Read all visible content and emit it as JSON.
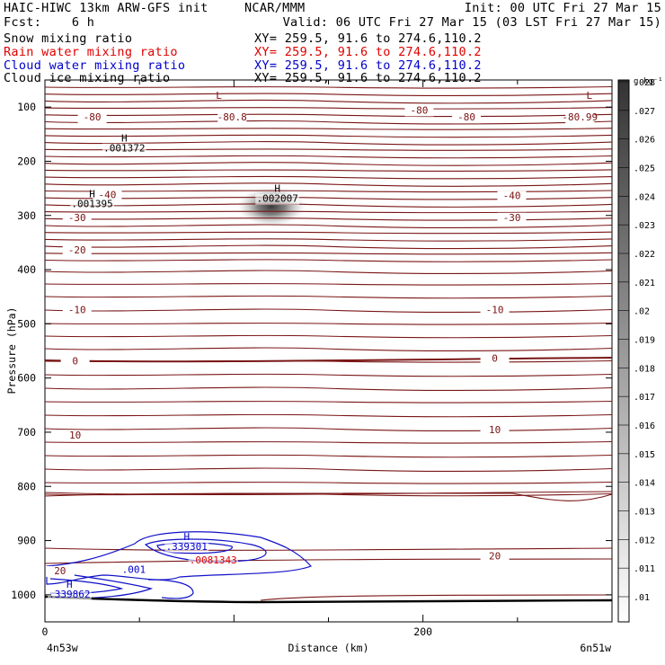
{
  "header": {
    "model": "HAIC-HIWC 13km ARW-GFS init",
    "org": "NCAR/MMM",
    "init": "Init: 00 UTC Fri 27 Mar 15",
    "fcst": "Fcst:    6 h",
    "valid": "Valid: 06 UTC Fri 27 Mar 15 (03 LST Fri 27 Mar 15)"
  },
  "fields": [
    {
      "label": "Snow mixing ratio",
      "xy": "XY= 259.5, 91.6 to 274.6,110.2",
      "color": "#000000"
    },
    {
      "label": "Rain water mixing ratio",
      "xy": "XY= 259.5, 91.6 to 274.6,110.2",
      "color": "#e00000"
    },
    {
      "label": "Cloud water mixing ratio",
      "xy": "XY= 259.5, 91.6 to 274.6,110.2",
      "color": "#0000cc"
    },
    {
      "label": "Cloud ice mixing ratio",
      "xy": "XY= 259.5, 91.6 to 274.6,110.2",
      "color": "#000000"
    }
  ],
  "chart_data": {
    "type": "heatmap",
    "xlabel": "Distance (km)",
    "ylabel": "Pressure (hPa)",
    "xlim": [
      0,
      300
    ],
    "ylim": [
      1050,
      50
    ],
    "x_ticks": [
      0,
      200
    ],
    "y_ticks": [
      100,
      200,
      300,
      400,
      500,
      600,
      700,
      800,
      900,
      1000
    ],
    "x_endpoints": [
      "4n53w",
      "6n51w"
    ],
    "colorbar": {
      "unit": "g kg⁻¹",
      "levels": [
        ".01",
        ".011",
        ".012",
        ".013",
        ".014",
        ".015",
        ".016",
        ".017",
        ".018",
        ".019",
        ".02",
        ".021",
        ".022",
        ".023",
        ".024",
        ".025",
        ".026",
        ".027",
        ".028"
      ]
    },
    "temperature_labels": [
      {
        "x": 25,
        "p": 125,
        "text": "-80",
        "color": "#7a1010"
      },
      {
        "x": 99,
        "p": 125,
        "text": "-80.8",
        "color": "#7a1010"
      },
      {
        "x": 198,
        "p": 112,
        "text": "-80",
        "color": "#7a1010"
      },
      {
        "x": 223,
        "p": 125,
        "text": "-80",
        "color": "#7a1010"
      },
      {
        "x": 283,
        "p": 125,
        "text": "-80.99",
        "color": "#7a1010"
      },
      {
        "x": 33,
        "p": 268,
        "text": "-40",
        "color": "#7a1010"
      },
      {
        "x": 247,
        "p": 270,
        "text": "-40",
        "color": "#7a1010"
      },
      {
        "x": 17,
        "p": 310,
        "text": "-30",
        "color": "#7a1010"
      },
      {
        "x": 247,
        "p": 310,
        "text": "-30",
        "color": "#7a1010"
      },
      {
        "x": 17,
        "p": 370,
        "text": "-20",
        "color": "#7a1010"
      },
      {
        "x": 17,
        "p": 480,
        "text": "-10",
        "color": "#7a1010"
      },
      {
        "x": 238,
        "p": 480,
        "text": "-10",
        "color": "#7a1010"
      },
      {
        "x": 16,
        "p": 575,
        "text": "0",
        "color": "#7a1010"
      },
      {
        "x": 238,
        "p": 570,
        "text": "0",
        "color": "#7a1010"
      },
      {
        "x": 16,
        "p": 712,
        "text": "10",
        "color": "#7a1010"
      },
      {
        "x": 238,
        "p": 702,
        "text": "10",
        "color": "#7a1010"
      },
      {
        "x": 8,
        "p": 962,
        "text": "20",
        "color": "#7a1010"
      },
      {
        "x": 238,
        "p": 935,
        "text": "20",
        "color": "#7a1010"
      }
    ],
    "extrema": [
      {
        "x": 42,
        "p": 182,
        "mark": "H",
        "value": ".001372",
        "color": "#000000"
      },
      {
        "x": 25,
        "p": 285,
        "mark": "H",
        "value": ".001395",
        "color": "#000000"
      },
      {
        "x": 123,
        "p": 275,
        "mark": "H",
        "value": ".002007",
        "color": "#000000"
      },
      {
        "x": 92,
        "p": 103,
        "mark": "L",
        "value": "",
        "color": "#7a1010"
      },
      {
        "x": 288,
        "p": 103,
        "mark": "L",
        "value": "",
        "color": "#7a1010"
      },
      {
        "x": 75,
        "p": 917,
        "mark": "H",
        "value": ".339301",
        "color": "#0000cc"
      },
      {
        "x": 13,
        "p": 1005,
        "mark": "H",
        "value": ".339862",
        "color": "#0000cc"
      },
      {
        "x": 89,
        "p": 942,
        "mark": "",
        "value": ".0081343",
        "color": "#e00000"
      },
      {
        "x": 47,
        "p": 960,
        "mark": "",
        "value": ".001",
        "color": "#0000cc"
      }
    ],
    "snow_maximum": {
      "x": 126,
      "p": 280,
      "value": 0.002007
    }
  }
}
